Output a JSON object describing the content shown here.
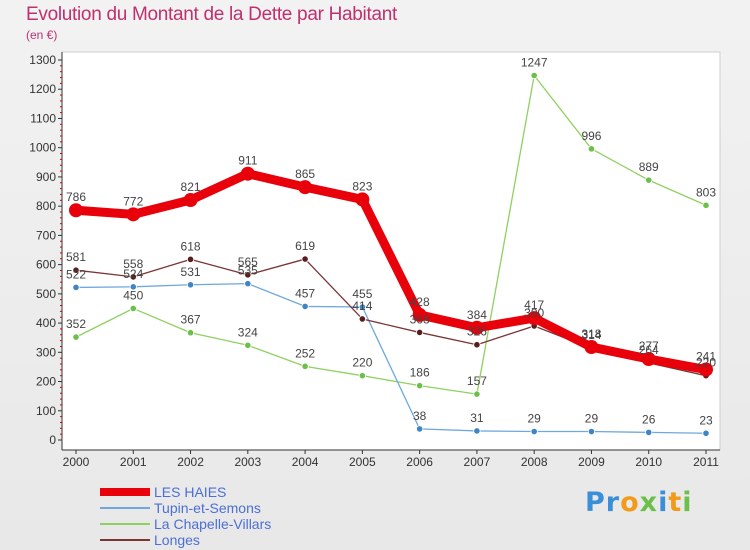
{
  "header": {
    "title": "Evolution du Montant de la Dette par Habitant",
    "subtitle": "(en €)"
  },
  "logo": {
    "text": "Proxiti"
  },
  "chart_data": {
    "type": "line",
    "title": "Evolution du Montant de la Dette par Habitant",
    "subtitle": "(en €)",
    "x": [
      "2000",
      "2001",
      "2002",
      "2003",
      "2004",
      "2005",
      "2006",
      "2007",
      "2008",
      "2009",
      "2010",
      "2011"
    ],
    "ylim": [
      0,
      1300
    ],
    "yticks": [
      0,
      100,
      200,
      300,
      400,
      500,
      600,
      700,
      800,
      900,
      1000,
      1100,
      1200,
      1300
    ],
    "grid": false,
    "legend_position": "bottom-left",
    "series": [
      {
        "name": "LES HAIES",
        "color": "#e8000b",
        "values": [
          786,
          772,
          821,
          911,
          865,
          823,
          428,
          384,
          417,
          318,
          277,
          241
        ],
        "labels": [
          "786",
          "772",
          "821",
          "911",
          "865",
          "823",
          "428",
          "384",
          "417",
          "318",
          "277",
          "241"
        ],
        "marker_color": "#e8000b"
      },
      {
        "name": "Tupin-et-Semons",
        "color": "#6fa8dc",
        "values": [
          522,
          524,
          531,
          535,
          457,
          455,
          38,
          31,
          29,
          29,
          26,
          23
        ],
        "labels": [
          "522",
          "524",
          "531",
          "535",
          "457",
          "455",
          "38",
          "31",
          "29",
          "29",
          "26",
          "23"
        ],
        "marker_color": "#3d85c6"
      },
      {
        "name": "La Chapelle-Villars",
        "color": "#8fd160",
        "values": [
          352,
          450,
          367,
          324,
          252,
          220,
          186,
          157,
          1247,
          996,
          889,
          803
        ],
        "labels": [
          "352",
          "450",
          "367",
          "324",
          "252",
          "220",
          "186",
          "157",
          "1247",
          "996",
          "889",
          "803"
        ],
        "marker_color": "#6cc04a"
      },
      {
        "name": "Longes",
        "color": "#7a3535",
        "values": [
          581,
          558,
          618,
          565,
          619,
          414,
          368,
          326,
          390,
          314,
          264,
          220
        ],
        "labels": [
          "581",
          "558",
          "618",
          "565",
          "619",
          "414",
          "368",
          "326",
          "390",
          "314",
          "264",
          "220"
        ],
        "marker_color": "#5a1c1c"
      }
    ]
  }
}
